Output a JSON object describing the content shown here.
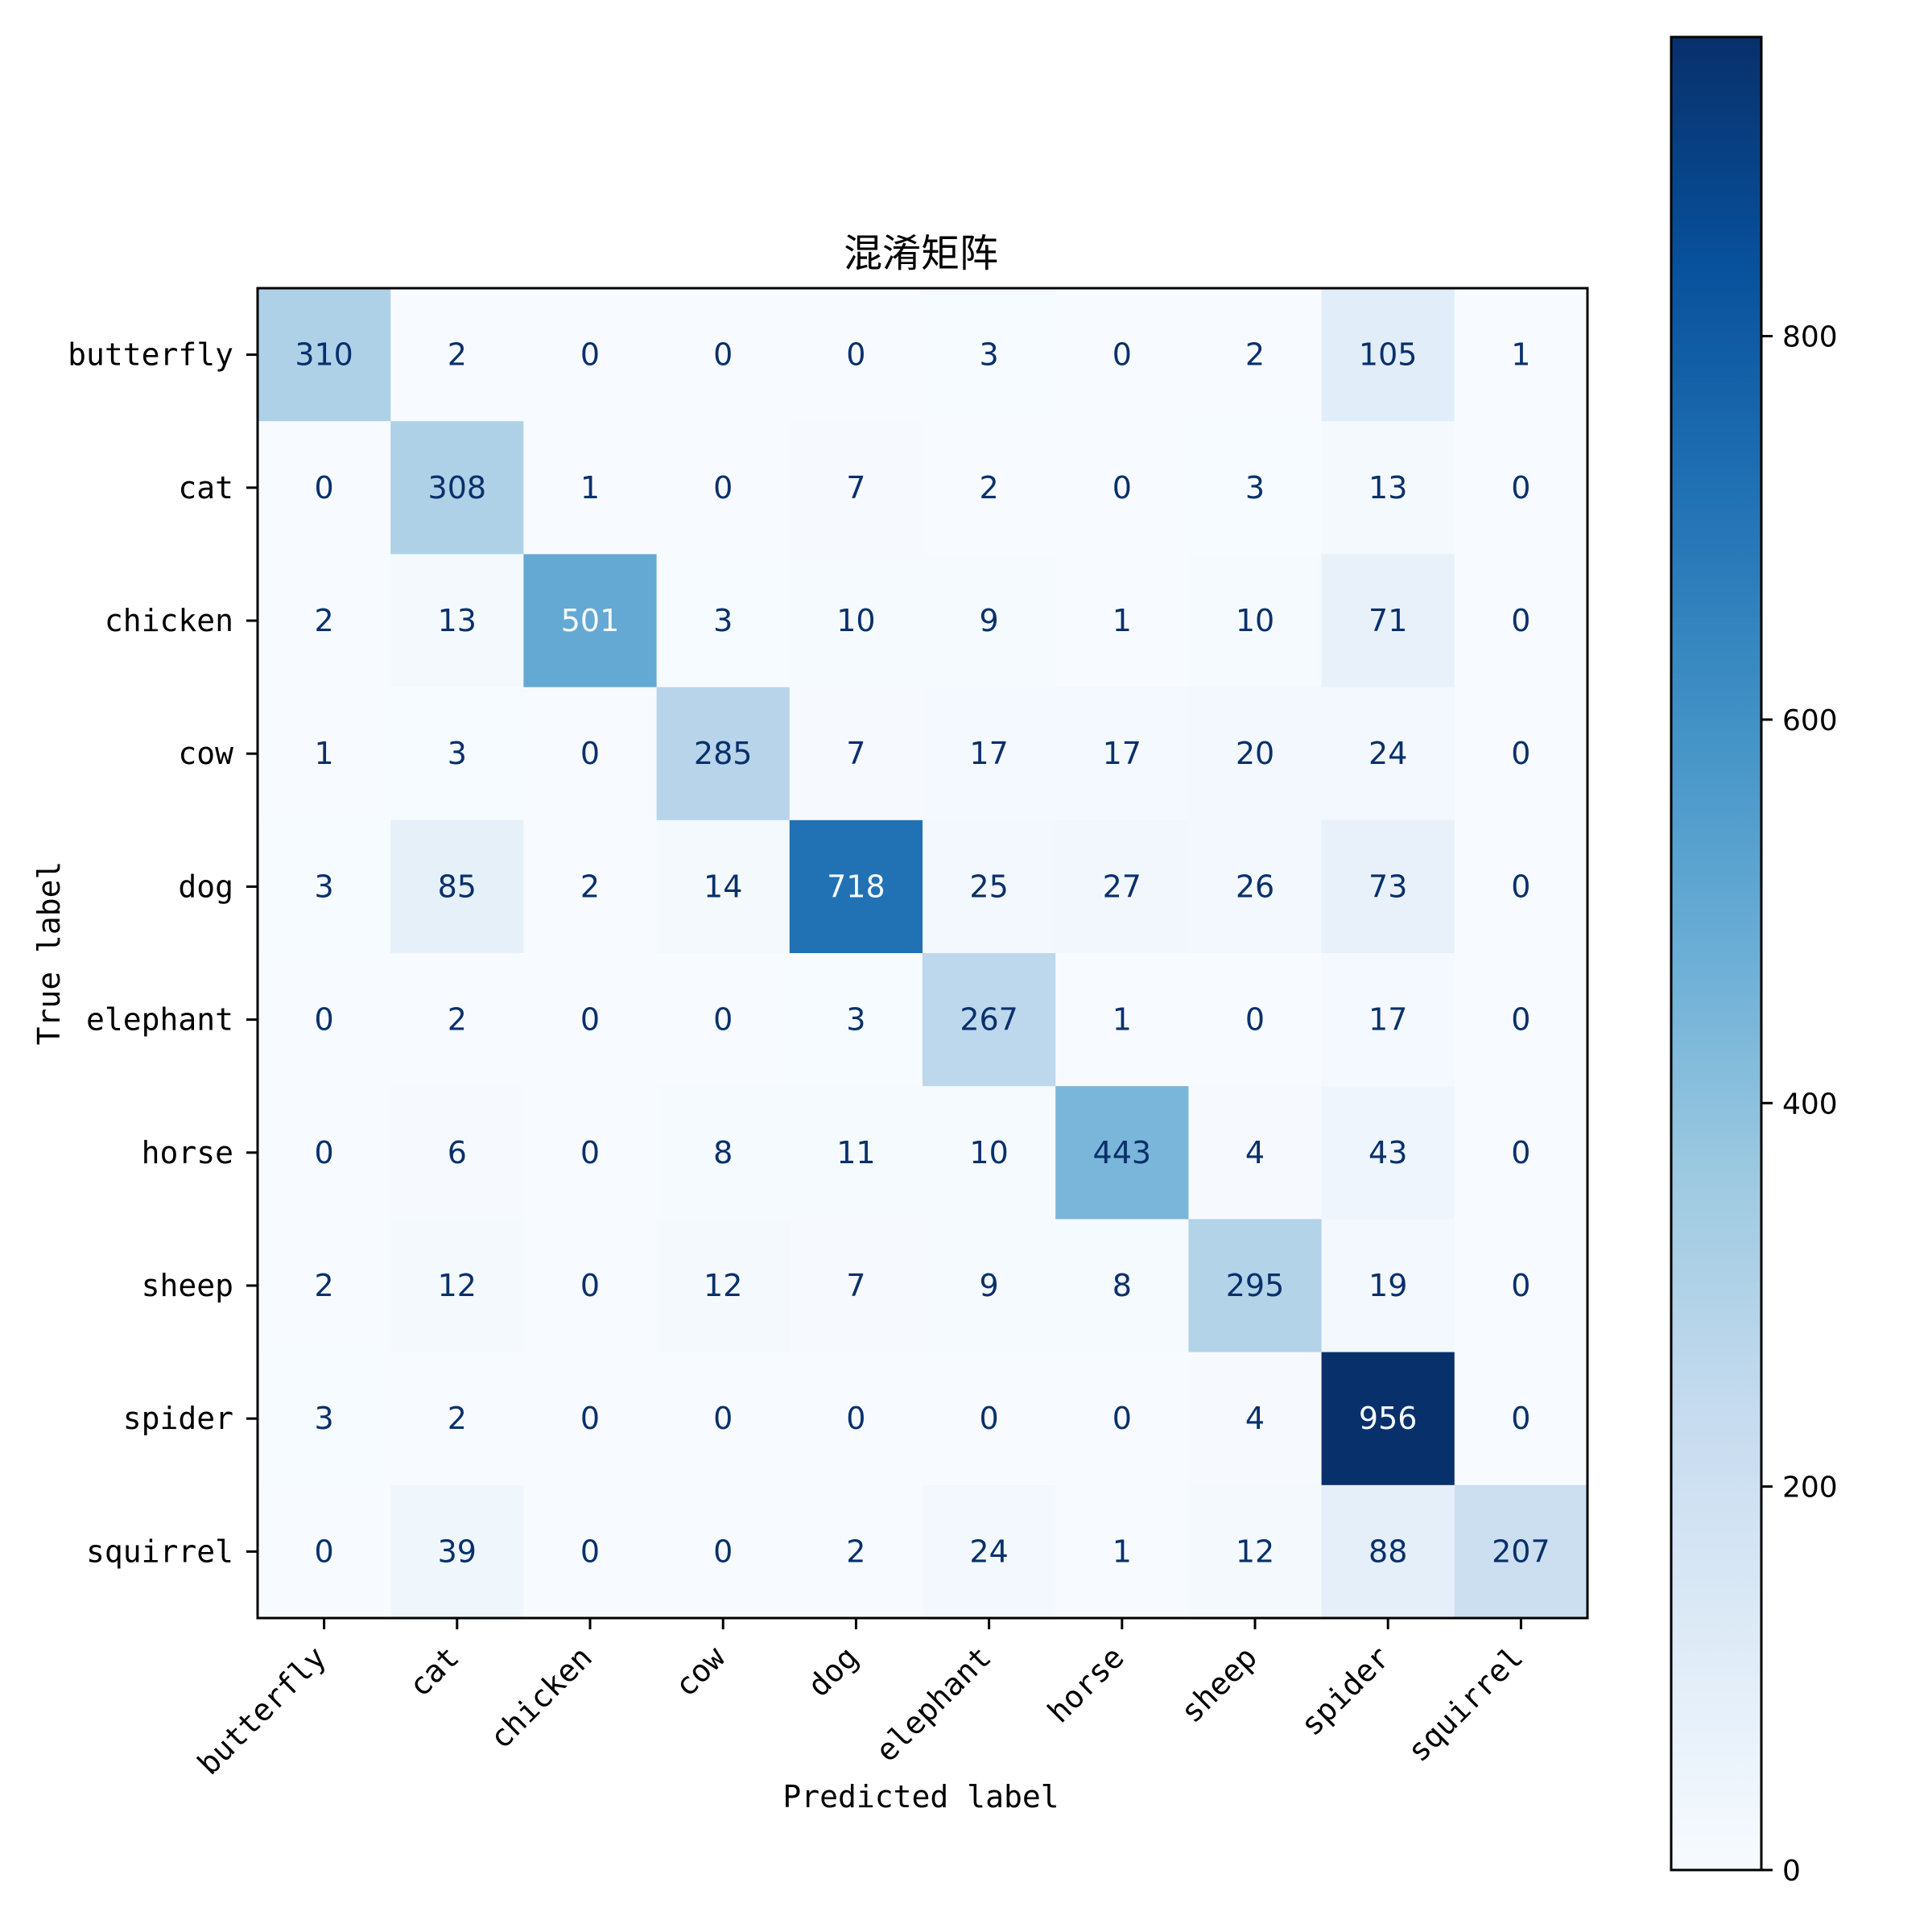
{
  "chart_data": {
    "type": "heatmap",
    "title": "混淆矩阵",
    "xlabel": "Predicted label",
    "ylabel": "True label",
    "x_categories": [
      "butterfly",
      "cat",
      "chicken",
      "cow",
      "dog",
      "elephant",
      "horse",
      "sheep",
      "spider",
      "squirrel"
    ],
    "y_categories": [
      "butterfly",
      "cat",
      "chicken",
      "cow",
      "dog",
      "elephant",
      "horse",
      "sheep",
      "spider",
      "squirrel"
    ],
    "values": [
      [
        310,
        2,
        0,
        0,
        0,
        3,
        0,
        2,
        105,
        1
      ],
      [
        0,
        308,
        1,
        0,
        7,
        2,
        0,
        3,
        13,
        0
      ],
      [
        2,
        13,
        501,
        3,
        10,
        9,
        1,
        10,
        71,
        0
      ],
      [
        1,
        3,
        0,
        285,
        7,
        17,
        17,
        20,
        24,
        0
      ],
      [
        3,
        85,
        2,
        14,
        718,
        25,
        27,
        26,
        73,
        0
      ],
      [
        0,
        2,
        0,
        0,
        3,
        267,
        1,
        0,
        17,
        0
      ],
      [
        0,
        6,
        0,
        8,
        11,
        10,
        443,
        4,
        43,
        0
      ],
      [
        2,
        12,
        0,
        12,
        7,
        9,
        8,
        295,
        19,
        0
      ],
      [
        3,
        2,
        0,
        0,
        0,
        0,
        0,
        4,
        956,
        0
      ],
      [
        0,
        39,
        0,
        0,
        2,
        24,
        1,
        12,
        88,
        207
      ]
    ],
    "colormap": "Blues",
    "colorbar": {
      "min": 0,
      "max": 956,
      "ticks": [
        0,
        200,
        400,
        600,
        800
      ]
    },
    "grid": false
  }
}
